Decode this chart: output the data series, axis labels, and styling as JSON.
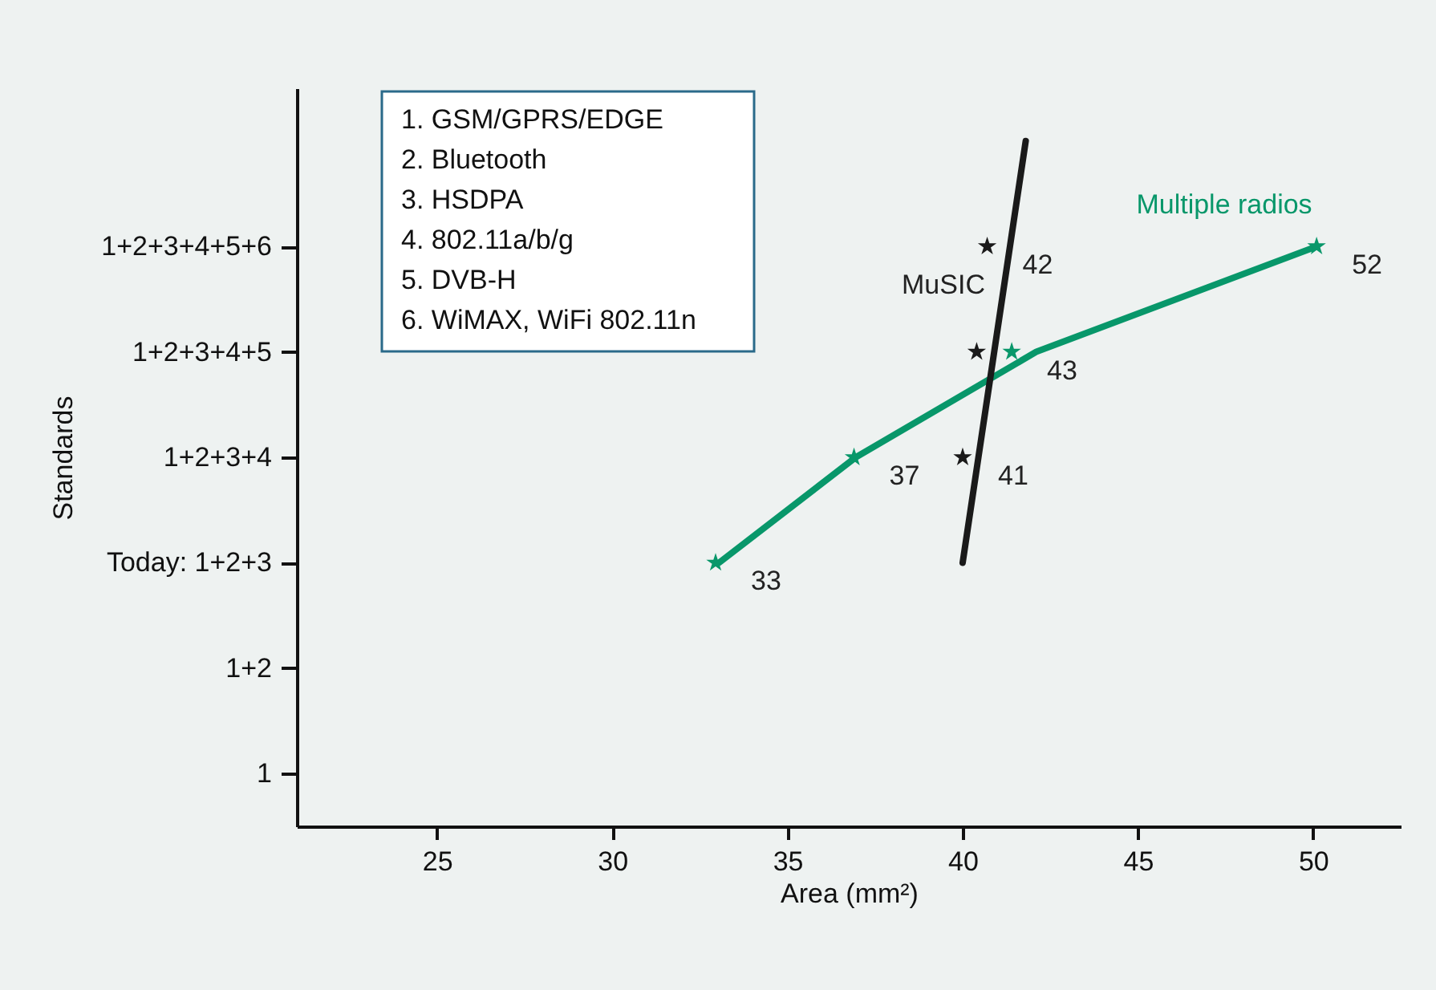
{
  "chart_data": {
    "type": "line",
    "orientation": "horizontal",
    "xlabel": "Area (mm²)",
    "ylabel": "Standards",
    "categories": [
      null,
      "1+2+3+4+5+6",
      "1+2+3+4+5",
      "1+2+3+4",
      "Today: 1+2+3",
      "1+2",
      "1"
    ],
    "xlim": [
      21,
      52.5
    ],
    "xticks": [
      25,
      30,
      35,
      40,
      45,
      50
    ],
    "grid": false,
    "line_style": "solid",
    "series": [
      {
        "color": "#08976a",
        "values": [
          null,
          50.1,
          42.1,
          36.95,
          33.05,
          null,
          null
        ]
      },
      {
        "color": "#1a1a1a",
        "values": [
          41.8,
          41.35,
          40.9,
          40.45,
          40.0,
          null,
          null
        ]
      },
      {
        "type": "scatter",
        "color": "#08976a",
        "values": [
          null,
          50.1,
          41.4,
          36.9,
          32.95,
          null,
          null
        ],
        "marker": "star"
      },
      {
        "type": "scatter",
        "color": "#1a1a1a",
        "values": [
          null,
          40.7,
          40.4,
          40.0,
          null,
          null,
          null
        ],
        "marker": "star"
      }
    ],
    "annotations": [
      "1. GSM/GPRS/EDGE",
      "2. Bluetooth",
      "3. HSDPA",
      "4. 802.11a/b/g",
      "5. DVB-H",
      "6. WiMAX, WiFi 802.11n",
      "MuSIC",
      "Multiple radios",
      {
        "text": "33",
        "x": 32.95,
        "y": "Today: 1+2+3"
      },
      {
        "text": "37",
        "x": 36.9,
        "y": "1+2+3+4"
      },
      {
        "text": "43",
        "x": 41.4,
        "y": "1+2+3+4+5"
      },
      {
        "text": "52",
        "x": 50.1,
        "y": "1+2+3+4+5+6"
      },
      {
        "text": "42",
        "x": 40.7,
        "y": "1+2+3+4+5+6"
      },
      {
        "text": "41",
        "x": 40.0,
        "y": "1+2+3+4"
      }
    ]
  }
}
